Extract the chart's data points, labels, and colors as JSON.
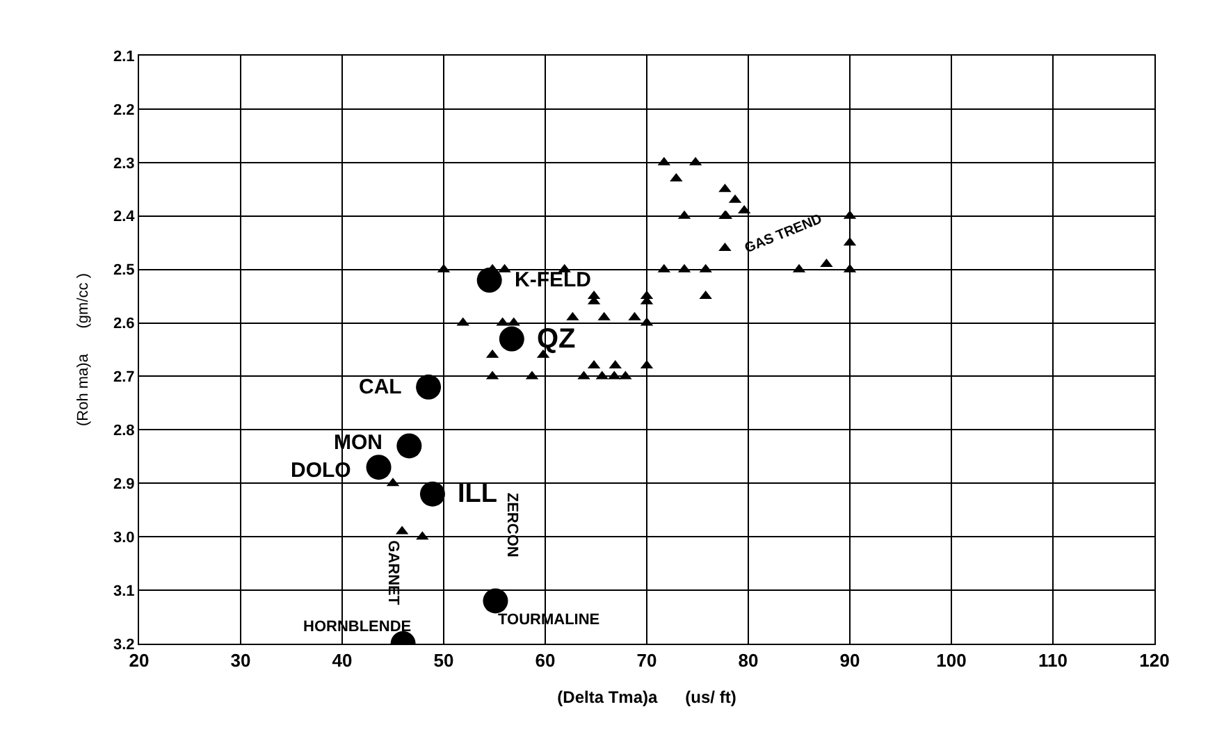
{
  "chart_data": {
    "type": "scatter",
    "xlabel": "(Delta Tma)a      (us/ ft)",
    "ylabel": "(Roh ma)a      (gm/cc )",
    "xlim": [
      20,
      120
    ],
    "xticks": [
      20,
      30,
      40,
      50,
      60,
      70,
      80,
      90,
      100,
      110,
      120
    ],
    "ylim": [
      3.2,
      2.1
    ],
    "yticks": [
      2.1,
      2.2,
      2.3,
      2.4,
      2.5,
      2.6,
      2.7,
      2.8,
      2.9,
      {
        "value": 3,
        "label": "3.0"
      },
      3.1,
      3.2
    ],
    "grid": true,
    "series": [
      {
        "color": "#000000",
        "marker": "triangle",
        "x": [
          50,
          54.8,
          56,
          61.9,
          71.7,
          73.7,
          75.8,
          64.8,
          64.8,
          70,
          70,
          75.8,
          51.9,
          55.8,
          56.9,
          62.7,
          65.8,
          68.8,
          70,
          54.8,
          59.8,
          64.8,
          66.9,
          70,
          54.8,
          58.7,
          63.8,
          65.6,
          66.8,
          67.9,
          71.7,
          74.8,
          72.9,
          77.7,
          78.7,
          73.7,
          77.7,
          79.6,
          77.8,
          77.7,
          90,
          90,
          90,
          85,
          87.7,
          45,
          45.9,
          47.9
        ],
        "values": [
          2.5,
          2.5,
          2.5,
          2.5,
          2.5,
          2.5,
          2.5,
          2.55,
          2.56,
          2.55,
          2.56,
          2.55,
          2.6,
          2.6,
          2.6,
          2.59,
          2.59,
          2.59,
          2.6,
          2.66,
          2.66,
          2.68,
          2.68,
          2.68,
          2.7,
          2.7,
          2.7,
          2.7,
          2.7,
          2.7,
          2.3,
          2.3,
          2.33,
          2.35,
          2.37,
          2.4,
          2.4,
          2.39,
          2.4,
          2.46,
          2.4,
          2.45,
          2.5,
          2.5,
          2.49,
          2.9,
          2.99,
          3.0
        ]
      },
      {
        "color": "#000000",
        "marker": "circle",
        "x": [
          54.5,
          56.7,
          48.5,
          46.6,
          43.6,
          48.9,
          55.1,
          46
        ],
        "values": [
          2.52,
          2.63,
          2.72,
          2.83,
          2.87,
          2.92,
          3.12,
          3.2
        ]
      }
    ],
    "annotations": [
      {
        "text": "K-FELD",
        "x": 56.2,
        "y": 2.52
      },
      {
        "text": "QZ",
        "x": 58.4,
        "y": 2.63
      },
      {
        "text": "CAL",
        "x": 46.7,
        "y": 2.72
      },
      {
        "text": "MON",
        "x": 44.8,
        "y": 2.83
      },
      {
        "text": "DOLO",
        "x": 41.8,
        "y": 2.87
      },
      {
        "text": "ILL",
        "x": 50.6,
        "y": 2.92
      },
      {
        "text": "TOURMALINE",
        "x": 55.1,
        "y": 3.12
      },
      {
        "text": "HORNBLENDE",
        "x": 46,
        "y": 3.2
      },
      "GARNET",
      "ZERCON",
      "GAS TREND"
    ]
  }
}
